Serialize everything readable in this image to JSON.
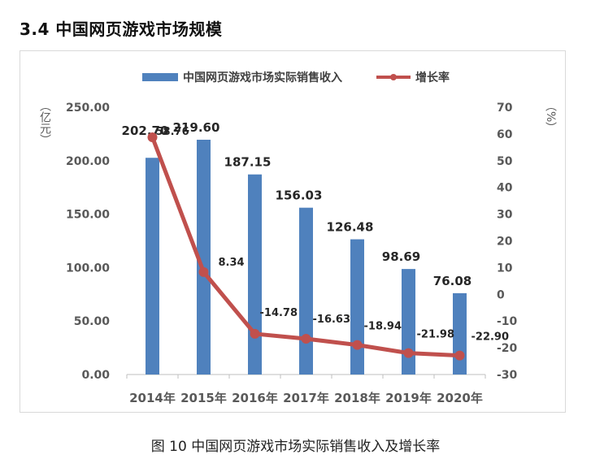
{
  "heading": "3.4  中国网页游戏市场规模",
  "caption": "图 10  中国网页游戏市场实际销售收入及增长率",
  "chart_data": {
    "type": "bar",
    "categories": [
      "2014年",
      "2015年",
      "2016年",
      "2017年",
      "2018年",
      "2019年",
      "2020年"
    ],
    "series": [
      {
        "name": "中国网页游戏市场实际销售收入",
        "type": "bar",
        "axis": "left",
        "color": "#4f81bd",
        "values": [
          202.7,
          219.6,
          187.15,
          156.03,
          126.48,
          98.69,
          76.08
        ],
        "labels": [
          "202.70",
          "219.60",
          "187.15",
          "156.03",
          "126.48",
          "98.69",
          "76.08"
        ]
      },
      {
        "name": "增长率",
        "type": "line",
        "axis": "right",
        "color": "#c0504d",
        "values": [
          58.76,
          8.34,
          -14.78,
          -16.63,
          -18.94,
          -21.98,
          -22.9
        ],
        "labels": [
          "58.76",
          "8.34",
          "-14.78",
          "-16.63",
          "-18.94",
          "-21.98",
          "-22.90"
        ]
      }
    ],
    "left_axis": {
      "unit_label": "（亿元）",
      "ylim": [
        0,
        250
      ],
      "ticks": [
        "0.00",
        "50.00",
        "100.00",
        "150.00",
        "200.00",
        "250.00"
      ]
    },
    "right_axis": {
      "unit_label": "（%）",
      "ylim": [
        -30,
        70
      ],
      "ticks": [
        "-30",
        "-20",
        "-10",
        "0",
        "10",
        "20",
        "30",
        "40",
        "50",
        "60",
        "70"
      ]
    },
    "legend_position": "top-center",
    "grid": false
  }
}
